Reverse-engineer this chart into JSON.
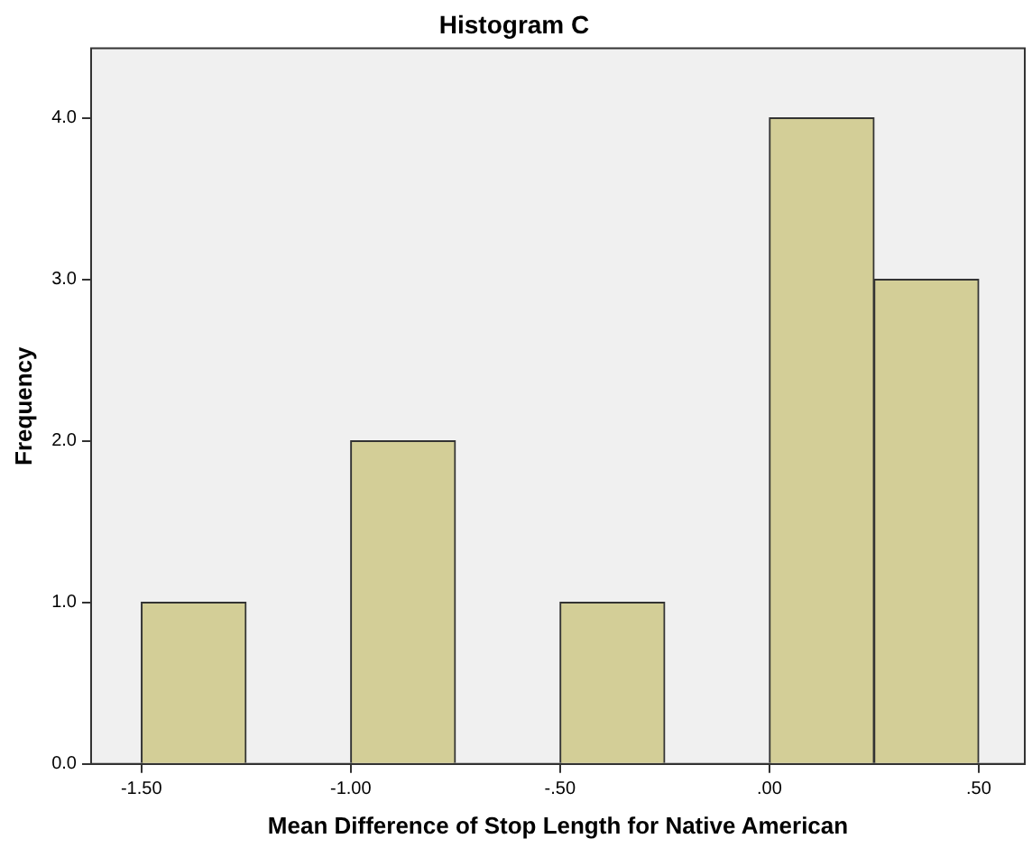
{
  "chart_data": {
    "type": "histogram",
    "title": "Histogram C",
    "xlabel": "Mean Difference of Stop Length for Native American",
    "ylabel": "Frequency",
    "bins": [
      -1.5,
      -1.25,
      -1.0,
      -0.75,
      -0.5,
      -0.25,
      0,
      0.25,
      0.5
    ],
    "values": [
      1,
      0,
      2,
      0,
      1,
      0,
      4,
      3
    ],
    "color": "#d3ce97",
    "xlim": [
      -1.62,
      0.61
    ],
    "xticks": [
      {
        "value": -1.5,
        "label": "-1.50"
      },
      {
        "value": -1.0,
        "label": "-1.00"
      },
      {
        "value": -0.5,
        "label": "-.50"
      },
      {
        "value": 0,
        "label": ".00"
      },
      {
        "value": 0.5,
        "label": ".50"
      }
    ],
    "ylim": [
      0,
      4.43
    ],
    "yticks": [
      {
        "value": 0,
        "label": "0.0"
      },
      {
        "value": 1,
        "label": "1.0"
      },
      {
        "value": 2,
        "label": "2.0"
      },
      {
        "value": 3,
        "label": "3.0"
      },
      {
        "value": 4,
        "label": "4.0"
      }
    ],
    "grid": false,
    "legend": false
  }
}
